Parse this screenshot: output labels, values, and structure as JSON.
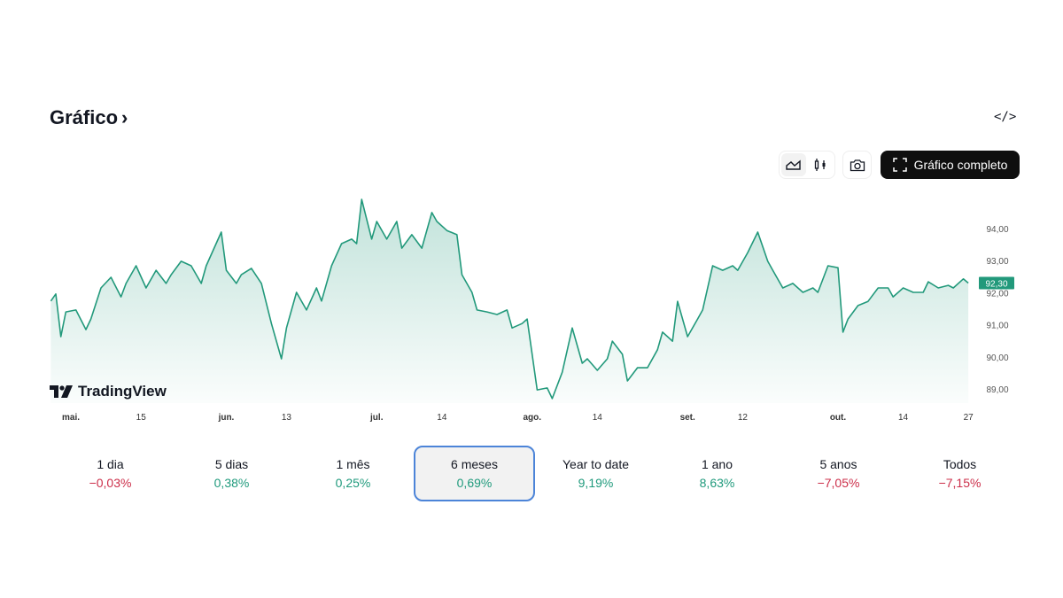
{
  "header": {
    "title": "Gráfico",
    "title_chevron": "›",
    "embed_icon": "code-icon"
  },
  "toolbar": {
    "area_icon": "area-chart-icon",
    "candles_icon": "candlestick-icon",
    "snapshot_icon": "camera-icon",
    "fullscreen_label": "Gráfico completo",
    "fullscreen_icon": "fullscreen-icon",
    "active_chart_type": "area"
  },
  "branding": {
    "logo_text": "TradingView"
  },
  "colors": {
    "line": "#22997b",
    "up": "#1f9a7c",
    "down": "#cc2f4a",
    "selected_border": "#4c84d8",
    "price_badge": "#22997b"
  },
  "chart_data": {
    "type": "area",
    "grid": false,
    "ylim": [
      88.6,
      95.0
    ],
    "y_ticks": [
      "89,00",
      "90,00",
      "91,00",
      "92,00",
      "93,00",
      "94,00"
    ],
    "y_tick_values": [
      89,
      90,
      91,
      92,
      93,
      94
    ],
    "x_ticks": [
      {
        "date": "05-01",
        "label": "mai.",
        "bold": true
      },
      {
        "date": "05-15",
        "label": "15"
      },
      {
        "date": "06-01",
        "label": "jun.",
        "bold": true
      },
      {
        "date": "06-13",
        "label": "13"
      },
      {
        "date": "07-01",
        "label": "jul.",
        "bold": true
      },
      {
        "date": "07-14",
        "label": "14"
      },
      {
        "date": "08-01",
        "label": "ago.",
        "bold": true
      },
      {
        "date": "08-14",
        "label": "14"
      },
      {
        "date": "09-01",
        "label": "set.",
        "bold": true
      },
      {
        "date": "09-12",
        "label": "12"
      },
      {
        "date": "10-01",
        "label": "out.",
        "bold": true
      },
      {
        "date": "10-14",
        "label": "14"
      },
      {
        "date": "10-27",
        "label": "27"
      }
    ],
    "last_price": 92.3,
    "last_price_label": "92,30",
    "points": [
      [
        "04-27",
        91.74
      ],
      [
        "04-28",
        91.96
      ],
      [
        "04-29",
        90.63
      ],
      [
        "04-30",
        91.4
      ],
      [
        "05-02",
        91.46
      ],
      [
        "05-04",
        90.85
      ],
      [
        "05-05",
        91.18
      ],
      [
        "05-07",
        92.15
      ],
      [
        "05-09",
        92.48
      ],
      [
        "05-11",
        91.87
      ],
      [
        "05-12",
        92.29
      ],
      [
        "05-14",
        92.84
      ],
      [
        "05-16",
        92.15
      ],
      [
        "05-18",
        92.7
      ],
      [
        "05-20",
        92.29
      ],
      [
        "05-21",
        92.56
      ],
      [
        "05-23",
        92.98
      ],
      [
        "05-25",
        92.84
      ],
      [
        "05-27",
        92.29
      ],
      [
        "05-28",
        92.84
      ],
      [
        "05-31",
        93.89
      ],
      [
        "06-01",
        92.7
      ],
      [
        "06-03",
        92.29
      ],
      [
        "06-04",
        92.56
      ],
      [
        "06-06",
        92.76
      ],
      [
        "06-08",
        92.29
      ],
      [
        "06-10",
        91.04
      ],
      [
        "06-12",
        89.94
      ],
      [
        "06-13",
        90.9
      ],
      [
        "06-15",
        92.01
      ],
      [
        "06-17",
        91.46
      ],
      [
        "06-19",
        92.15
      ],
      [
        "06-20",
        91.74
      ],
      [
        "06-22",
        92.84
      ],
      [
        "06-24",
        93.53
      ],
      [
        "06-26",
        93.67
      ],
      [
        "06-27",
        93.53
      ],
      [
        "06-28",
        94.91
      ],
      [
        "06-30",
        93.67
      ],
      [
        "07-01",
        94.22
      ],
      [
        "07-03",
        93.67
      ],
      [
        "07-05",
        94.22
      ],
      [
        "07-06",
        93.39
      ],
      [
        "07-08",
        93.81
      ],
      [
        "07-10",
        93.39
      ],
      [
        "07-12",
        94.5
      ],
      [
        "07-13",
        94.22
      ],
      [
        "07-15",
        93.94
      ],
      [
        "07-17",
        93.81
      ],
      [
        "07-18",
        92.56
      ],
      [
        "07-20",
        92.01
      ],
      [
        "07-21",
        91.46
      ],
      [
        "07-23",
        91.4
      ],
      [
        "07-25",
        91.32
      ],
      [
        "07-27",
        91.46
      ],
      [
        "07-28",
        90.9
      ],
      [
        "07-30",
        91.04
      ],
      [
        "07-31",
        91.18
      ],
      [
        "08-02",
        88.97
      ],
      [
        "08-04",
        89.03
      ],
      [
        "08-05",
        88.7
      ],
      [
        "08-07",
        89.52
      ],
      [
        "08-09",
        90.9
      ],
      [
        "08-11",
        89.8
      ],
      [
        "08-12",
        89.94
      ],
      [
        "08-14",
        89.58
      ],
      [
        "08-16",
        89.94
      ],
      [
        "08-17",
        90.49
      ],
      [
        "08-19",
        90.08
      ],
      [
        "08-20",
        89.25
      ],
      [
        "08-22",
        89.66
      ],
      [
        "08-24",
        89.66
      ],
      [
        "08-26",
        90.22
      ],
      [
        "08-27",
        90.77
      ],
      [
        "08-29",
        90.49
      ],
      [
        "08-30",
        91.73
      ],
      [
        "09-01",
        90.63
      ],
      [
        "09-03",
        91.18
      ],
      [
        "09-04",
        91.46
      ],
      [
        "09-06",
        92.84
      ],
      [
        "09-08",
        92.7
      ],
      [
        "09-10",
        92.84
      ],
      [
        "09-11",
        92.7
      ],
      [
        "09-13",
        93.25
      ],
      [
        "09-15",
        93.89
      ],
      [
        "09-17",
        92.98
      ],
      [
        "09-18",
        92.7
      ],
      [
        "09-20",
        92.15
      ],
      [
        "09-22",
        92.29
      ],
      [
        "09-24",
        92.01
      ],
      [
        "09-26",
        92.15
      ],
      [
        "09-27",
        92.01
      ],
      [
        "09-29",
        92.84
      ],
      [
        "10-01",
        92.78
      ],
      [
        "10-02",
        90.77
      ],
      [
        "10-03",
        91.18
      ],
      [
        "10-05",
        91.6
      ],
      [
        "10-07",
        91.73
      ],
      [
        "10-09",
        92.15
      ],
      [
        "10-11",
        92.15
      ],
      [
        "10-12",
        91.87
      ],
      [
        "10-14",
        92.15
      ],
      [
        "10-16",
        92.01
      ],
      [
        "10-18",
        92.01
      ],
      [
        "10-19",
        92.34
      ],
      [
        "10-21",
        92.15
      ],
      [
        "10-23",
        92.23
      ],
      [
        "10-24",
        92.15
      ],
      [
        "10-26",
        92.43
      ],
      [
        "10-27",
        92.3
      ]
    ]
  },
  "periods": [
    {
      "label": "1 dia",
      "change": "−0,03%",
      "dir": "down"
    },
    {
      "label": "5 dias",
      "change": "0,38%",
      "dir": "up"
    },
    {
      "label": "1 mês",
      "change": "0,25%",
      "dir": "up"
    },
    {
      "label": "6 meses",
      "change": "0,69%",
      "dir": "up",
      "selected": true
    },
    {
      "label": "Year to date",
      "change": "9,19%",
      "dir": "up"
    },
    {
      "label": "1 ano",
      "change": "8,63%",
      "dir": "up"
    },
    {
      "label": "5 anos",
      "change": "−7,05%",
      "dir": "down"
    },
    {
      "label": "Todos",
      "change": "−7,15%",
      "dir": "down"
    }
  ]
}
